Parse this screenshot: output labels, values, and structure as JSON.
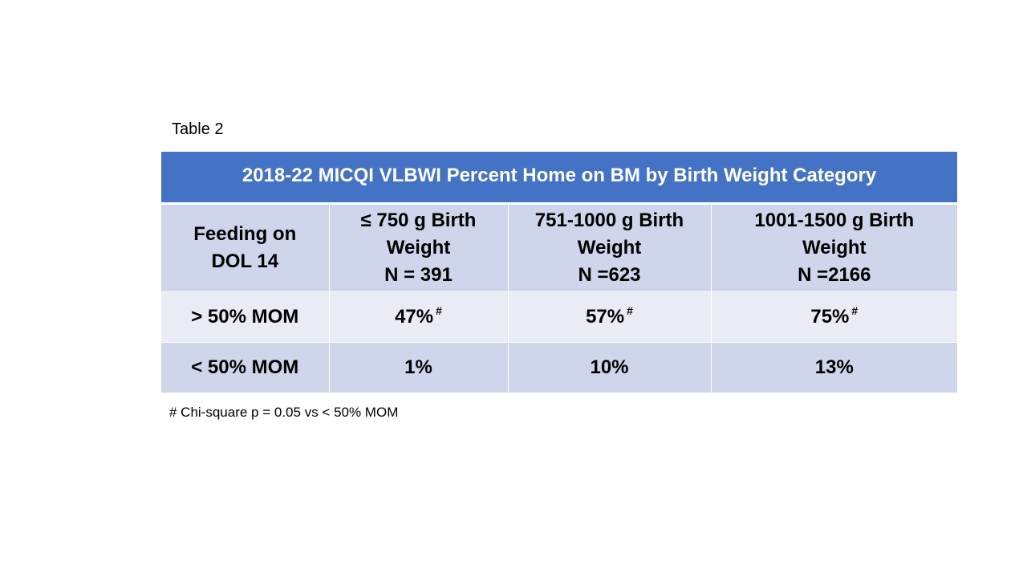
{
  "caption": "Table 2",
  "table": {
    "title": "2018-22 MICQI VLBWI Percent Home on BM by Birth Weight Category",
    "headers": [
      {
        "lines": [
          "Feeding on",
          "DOL 14"
        ]
      },
      {
        "lines": [
          "≤ 750 g Birth",
          "Weight",
          "N = 391"
        ]
      },
      {
        "lines": [
          "751-1000 g Birth",
          "Weight",
          "N =623"
        ]
      },
      {
        "lines": [
          "1001-1500 g Birth",
          "Weight",
          "N =2166"
        ]
      }
    ],
    "rows": [
      {
        "label": "> 50% MOM",
        "cells": [
          {
            "value": "47%",
            "mark": "#"
          },
          {
            "value": "57%",
            "mark": "#"
          },
          {
            "value": "75%",
            "mark": "#"
          }
        ]
      },
      {
        "label": "< 50% MOM",
        "cells": [
          {
            "value": "1%"
          },
          {
            "value": "10%"
          },
          {
            "value": "13%"
          }
        ]
      }
    ]
  },
  "footnote": "# Chi-square  p = 0.05 vs < 50% MOM",
  "colors": {
    "title_bg": "#4472c4",
    "header_bg": "#cfd5ea",
    "row_light": "#e9ebf5",
    "row_dark": "#cfd5ea"
  }
}
